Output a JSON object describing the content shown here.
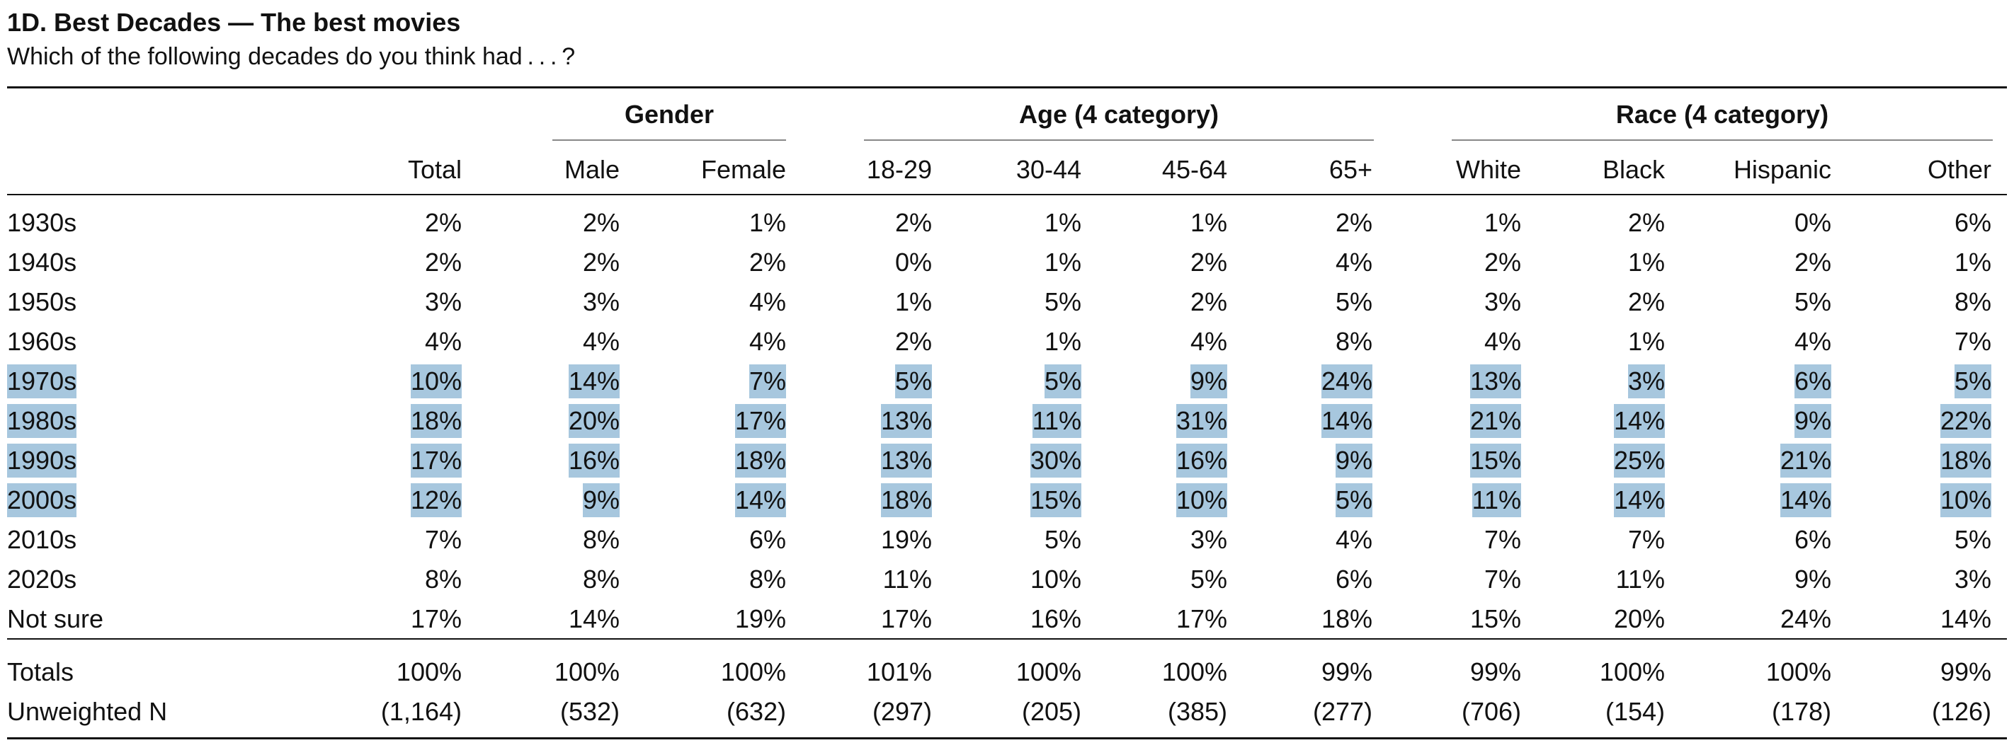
{
  "title": "1D. Best Decades — The best movies",
  "subtitle": "Which of the following decades do you think had . . . ?",
  "highlight_color": "#a7c7de",
  "groups": [
    {
      "label": "Gender"
    },
    {
      "label": "Age (4 category)"
    },
    {
      "label": "Race (4 category)"
    }
  ],
  "columns": [
    "Total",
    "Male",
    "Female",
    "18-29",
    "30-44",
    "45-64",
    "65+",
    "White",
    "Black",
    "Hispanic",
    "Other"
  ],
  "rows": [
    {
      "label": "1930s",
      "highlighted": false,
      "values": [
        "2%",
        "2%",
        "1%",
        "2%",
        "1%",
        "1%",
        "2%",
        "1%",
        "2%",
        "0%",
        "6%"
      ]
    },
    {
      "label": "1940s",
      "highlighted": false,
      "values": [
        "2%",
        "2%",
        "2%",
        "0%",
        "1%",
        "2%",
        "4%",
        "2%",
        "1%",
        "2%",
        "1%"
      ]
    },
    {
      "label": "1950s",
      "highlighted": false,
      "values": [
        "3%",
        "3%",
        "4%",
        "1%",
        "5%",
        "2%",
        "5%",
        "3%",
        "2%",
        "5%",
        "8%"
      ]
    },
    {
      "label": "1960s",
      "highlighted": false,
      "values": [
        "4%",
        "4%",
        "4%",
        "2%",
        "1%",
        "4%",
        "8%",
        "4%",
        "1%",
        "4%",
        "7%"
      ]
    },
    {
      "label": "1970s",
      "highlighted": true,
      "values": [
        "10%",
        "14%",
        "7%",
        "5%",
        "5%",
        "9%",
        "24%",
        "13%",
        "3%",
        "6%",
        "5%"
      ]
    },
    {
      "label": "1980s",
      "highlighted": true,
      "values": [
        "18%",
        "20%",
        "17%",
        "13%",
        "11%",
        "31%",
        "14%",
        "21%",
        "14%",
        "9%",
        "22%"
      ]
    },
    {
      "label": "1990s",
      "highlighted": true,
      "values": [
        "17%",
        "16%",
        "18%",
        "13%",
        "30%",
        "16%",
        "9%",
        "15%",
        "25%",
        "21%",
        "18%"
      ]
    },
    {
      "label": "2000s",
      "highlighted": true,
      "values": [
        "12%",
        "9%",
        "14%",
        "18%",
        "15%",
        "10%",
        "5%",
        "11%",
        "14%",
        "14%",
        "10%"
      ]
    },
    {
      "label": "2010s",
      "highlighted": false,
      "values": [
        "7%",
        "8%",
        "6%",
        "19%",
        "5%",
        "3%",
        "4%",
        "7%",
        "7%",
        "6%",
        "5%"
      ]
    },
    {
      "label": "2020s",
      "highlighted": false,
      "values": [
        "8%",
        "8%",
        "8%",
        "11%",
        "10%",
        "5%",
        "6%",
        "7%",
        "11%",
        "9%",
        "3%"
      ]
    },
    {
      "label": "Not sure",
      "highlighted": false,
      "values": [
        "17%",
        "14%",
        "19%",
        "17%",
        "16%",
        "17%",
        "18%",
        "15%",
        "20%",
        "24%",
        "14%"
      ]
    }
  ],
  "footer_rows": [
    {
      "label": "Totals",
      "values": [
        "100%",
        "100%",
        "100%",
        "101%",
        "100%",
        "100%",
        "99%",
        "99%",
        "100%",
        "100%",
        "99%"
      ]
    },
    {
      "label": "Unweighted N",
      "values": [
        "(1,164)",
        "(532)",
        "(632)",
        "(297)",
        "(205)",
        "(385)",
        "(277)",
        "(706)",
        "(154)",
        "(178)",
        "(126)"
      ]
    }
  ]
}
